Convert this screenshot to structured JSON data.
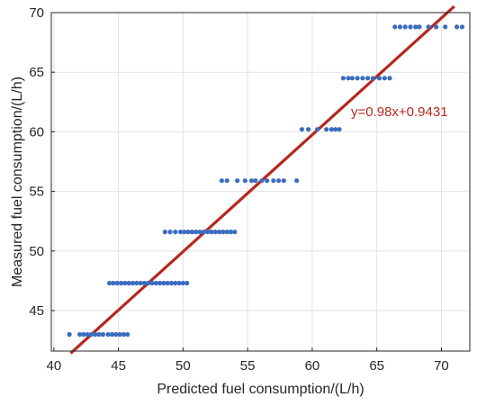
{
  "chart_data": {
    "type": "scatter",
    "title": "",
    "xlabel": "Predicted fuel consumption/(L/h)",
    "ylabel": "Measured fuel consumption/(L/h)",
    "xlim": [
      39.8,
      72.2
    ],
    "ylim": [
      41.6,
      70
    ],
    "xticks": [
      "40",
      "45",
      "50",
      "55",
      "60",
      "65",
      "70"
    ],
    "yticks": [
      "45",
      "50",
      "55",
      "60",
      "65",
      "70"
    ],
    "grid": true,
    "colors": {
      "points": "#3a6cc0",
      "fit_line": "#b5281e",
      "grid": "#e3e3e3",
      "axis": "#262626",
      "annotation": "#b5281e"
    },
    "series": [
      {
        "type": "scatter",
        "levels": [
          {
            "y": 43.0,
            "x": [
              41.2,
              42.0,
              42.3,
              42.6,
              42.9,
              43.2,
              43.5,
              43.8,
              44.2,
              44.5,
              44.8,
              45.1,
              45.4,
              45.7
            ]
          },
          {
            "y": 47.3,
            "x": [
              44.3,
              44.6,
              44.9,
              45.2,
              45.5,
              45.8,
              46.1,
              46.4,
              46.7,
              47.0,
              47.3,
              47.6,
              47.9,
              48.2,
              48.5,
              48.8,
              49.1,
              49.4,
              49.7,
              50.0,
              50.3
            ]
          },
          {
            "y": 51.6,
            "x": [
              48.6,
              49.0,
              49.4,
              49.8,
              50.1,
              50.4,
              50.7,
              51.0,
              51.3,
              51.6,
              51.9,
              52.2,
              52.5,
              52.8,
              53.1,
              53.4,
              53.7,
              54.0
            ]
          },
          {
            "y": 55.9,
            "x": [
              53.0,
              53.4,
              54.2,
              54.8,
              55.3,
              55.6,
              56.1,
              56.5,
              57.0,
              57.4,
              57.8,
              58.8
            ]
          },
          {
            "y": 60.2,
            "x": [
              59.2,
              59.7,
              60.4,
              61.1,
              61.5,
              61.8,
              62.1
            ]
          },
          {
            "y": 64.5,
            "x": [
              62.4,
              62.8,
              63.1,
              63.5,
              63.9,
              64.3,
              64.7,
              65.2,
              65.6,
              66.0
            ]
          },
          {
            "y": 68.8,
            "x": [
              66.4,
              66.8,
              67.2,
              67.6,
              68.0,
              68.3,
              69.0,
              69.6,
              70.3,
              71.2,
              71.6
            ]
          }
        ]
      },
      {
        "type": "line",
        "slope": 0.98,
        "intercept": 0.9431,
        "x_range": [
          41.3,
          71.0
        ]
      }
    ],
    "annotations": [
      {
        "text": "y=0.98x+0.9431",
        "x": 63.0,
        "y": 61.3
      }
    ]
  }
}
